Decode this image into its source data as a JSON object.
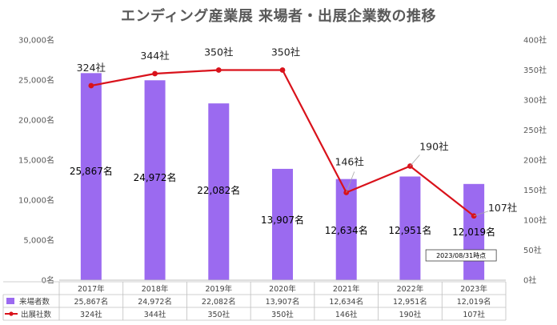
{
  "chart_data": {
    "type": "bar",
    "title": "エンディング産業展 来場者・出展企業数の推移",
    "categories": [
      "2017年",
      "2018年",
      "2019年",
      "2020年",
      "2021年",
      "2022年",
      "2023年"
    ],
    "series": [
      {
        "name": "来場者数",
        "type": "bar",
        "axis": "left",
        "values": [
          25867,
          24972,
          22082,
          13907,
          12634,
          12951,
          12019
        ],
        "labels": [
          "25,867名",
          "24,972名",
          "22,082名",
          "13,907名",
          "12,634名",
          "12,951名",
          "12,019名"
        ],
        "color": "#9B6AF0"
      },
      {
        "name": "出展社数",
        "type": "line",
        "axis": "right",
        "values": [
          324,
          344,
          350,
          350,
          146,
          190,
          107
        ],
        "labels": [
          "324社",
          "344社",
          "350社",
          "350社",
          "146社",
          "190社",
          "107社"
        ],
        "color": "#D9121B"
      }
    ],
    "y_left": {
      "ylim": [
        0,
        30000
      ],
      "ticks": [
        "0名",
        "5,000名",
        "10,000名",
        "15,000名",
        "20,000名",
        "25,000名",
        "30,000名"
      ]
    },
    "y_right": {
      "ylim": [
        0,
        400
      ],
      "ticks": [
        "0社",
        "50社",
        "100社",
        "150社",
        "200社",
        "250社",
        "300社",
        "350社",
        "400社"
      ]
    },
    "note": "2023/08/31時点",
    "grid": false,
    "legend": "data table below chart"
  }
}
